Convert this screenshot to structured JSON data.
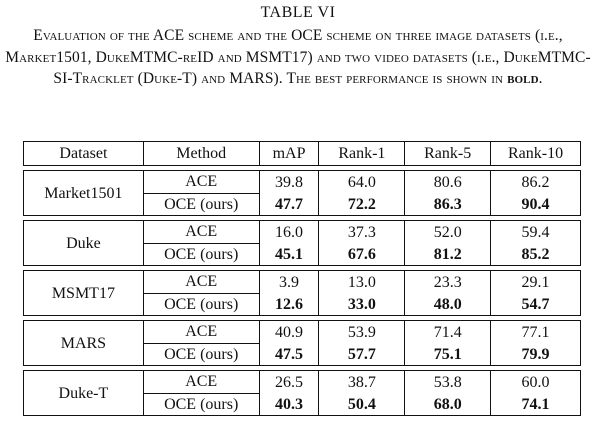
{
  "table_number": "TABLE VI",
  "caption": {
    "part1": "Evaluation of the ACE scheme and the OCE scheme on three image datasets (i.e., Market1501, DukeMTMC-reID and MSMT17) and two video datasets (i.e., DukeMTMC-SI-Tracklet (Duke-T) and MARS). The best performance is shown in ",
    "bold_word": "bold",
    "part2": "."
  },
  "columns": {
    "dataset": "Dataset",
    "method": "Method",
    "map": "mAP",
    "rank1": "Rank-1",
    "rank5": "Rank-5",
    "rank10": "Rank-10"
  },
  "groups": [
    {
      "dataset": "Market1501",
      "ace": {
        "method": "ACE",
        "map": "39.8",
        "rank1": "64.0",
        "rank5": "80.6",
        "rank10": "86.2"
      },
      "oce": {
        "method": "OCE (ours)",
        "map": "47.7",
        "rank1": "72.2",
        "rank5": "86.3",
        "rank10": "90.4"
      }
    },
    {
      "dataset": "Duke",
      "ace": {
        "method": "ACE",
        "map": "16.0",
        "rank1": "37.3",
        "rank5": "52.0",
        "rank10": "59.4"
      },
      "oce": {
        "method": "OCE (ours)",
        "map": "45.1",
        "rank1": "67.6",
        "rank5": "81.2",
        "rank10": "85.2"
      }
    },
    {
      "dataset": "MSMT17",
      "ace": {
        "method": "ACE",
        "map": "3.9",
        "rank1": "13.0",
        "rank5": "23.3",
        "rank10": "29.1"
      },
      "oce": {
        "method": "OCE (ours)",
        "map": "12.6",
        "rank1": "33.0",
        "rank5": "48.0",
        "rank10": "54.7"
      }
    },
    {
      "dataset": "MARS",
      "ace": {
        "method": "ACE",
        "map": "40.9",
        "rank1": "53.9",
        "rank5": "71.4",
        "rank10": "77.1"
      },
      "oce": {
        "method": "OCE (ours)",
        "map": "47.5",
        "rank1": "57.7",
        "rank5": "75.1",
        "rank10": "79.9"
      }
    },
    {
      "dataset": "Duke-T",
      "ace": {
        "method": "ACE",
        "map": "26.5",
        "rank1": "38.7",
        "rank5": "53.8",
        "rank10": "60.0"
      },
      "oce": {
        "method": "OCE (ours)",
        "map": "40.3",
        "rank1": "50.4",
        "rank5": "68.0",
        "rank10": "74.1"
      }
    }
  ]
}
